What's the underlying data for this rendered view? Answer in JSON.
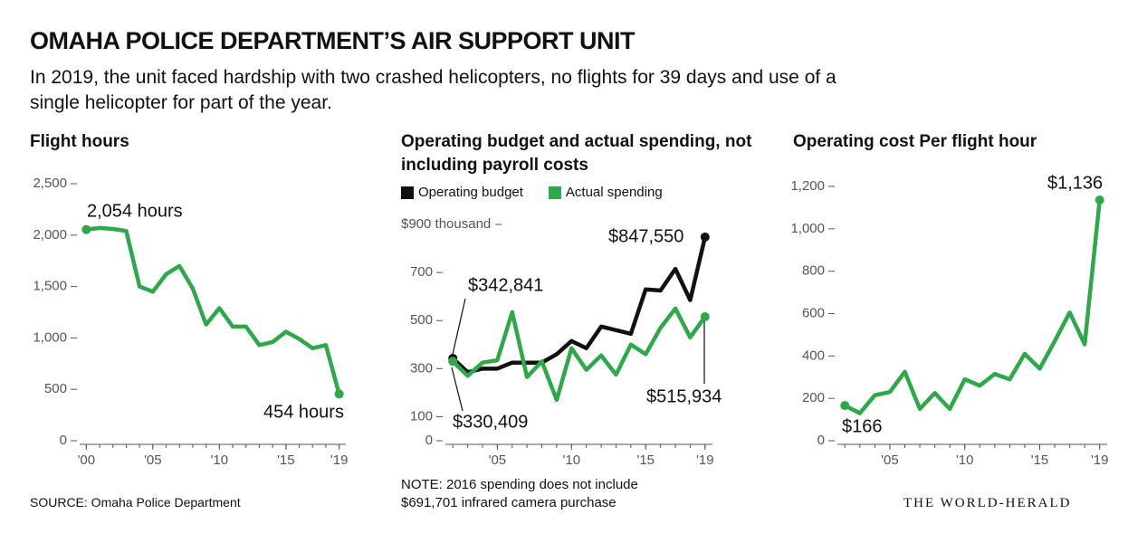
{
  "header": {
    "title": "OMAHA POLICE DEPARTMENT’S AIR SUPPORT UNIT",
    "subtitle": "In 2019, the unit faced hardship with two crashed helicopters, no flights for 39 days and use of a single helicopter for part of the year."
  },
  "source": "SOURCE: Omaha Police Department",
  "credit": "THE WORLD-HERALD",
  "chart_data": [
    {
      "type": "line",
      "title": "Flight hours",
      "x": [
        2000,
        2001,
        2002,
        2003,
        2004,
        2005,
        2006,
        2007,
        2008,
        2009,
        2010,
        2011,
        2012,
        2013,
        2014,
        2015,
        2016,
        2017,
        2018,
        2019
      ],
      "series": [
        {
          "color": "#2ea84a",
          "values": [
            2054,
            2070,
            2060,
            2040,
            1500,
            1450,
            1620,
            1700,
            1480,
            1130,
            1290,
            1110,
            1110,
            930,
            960,
            1060,
            990,
            900,
            930,
            454
          ]
        }
      ],
      "xlim": [
        1999.5,
        2019.5
      ],
      "xticks": [
        {
          "value": 2000,
          "label": "'00"
        },
        {
          "value": 2005,
          "label": "'05"
        },
        {
          "value": 2010,
          "label": "'10"
        },
        {
          "value": 2015,
          "label": "'15"
        },
        {
          "value": 2019,
          "label": "'19"
        }
      ],
      "ylim": [
        0,
        2500
      ],
      "yticks": [
        0,
        {
          "value": 500,
          "label": "500"
        },
        {
          "value": 1000,
          "label": "1,000"
        },
        {
          "value": 1500,
          "label": "1,500"
        },
        {
          "value": 2000,
          "label": "2,000"
        },
        {
          "value": 2500,
          "label": "2,500"
        }
      ],
      "annotations": [
        "2,054 hours",
        "454 hours"
      ]
    },
    {
      "type": "line",
      "title": "Operating budget and actual spending, not including payroll costs",
      "x": [
        2002,
        2003,
        2004,
        2005,
        2006,
        2007,
        2008,
        2009,
        2010,
        2011,
        2012,
        2013,
        2014,
        2015,
        2016,
        2017,
        2018,
        2019
      ],
      "series": [
        {
          "name": "Operating budget",
          "color": "#111111",
          "values": [
            342.841,
            285,
            300,
            300,
            325,
            325,
            325,
            360,
            415,
            385,
            475,
            460,
            445,
            630,
            625,
            715,
            585,
            847.55
          ]
        },
        {
          "name": "Actual spending",
          "color": "#2ea84a",
          "values": [
            330.409,
            270,
            325,
            335,
            535,
            265,
            330,
            170,
            385,
            295,
            355,
            275,
            400,
            360,
            470,
            550,
            430,
            515.934
          ]
        }
      ],
      "xlim": [
        2001.5,
        2019.5
      ],
      "xticks": [
        {
          "value": 2005,
          "label": "'05"
        },
        {
          "value": 2010,
          "label": "'10"
        },
        {
          "value": 2015,
          "label": "'15"
        },
        {
          "value": 2019,
          "label": "'19"
        }
      ],
      "ylim": [
        0,
        900
      ],
      "yticks": [
        0,
        100,
        300,
        500,
        700,
        {
          "value": 900,
          "label": "$900 thousand"
        }
      ],
      "annotations": [
        "$342,841",
        "$330,409",
        "$847,550",
        "$515,934"
      ],
      "note": "NOTE: 2016 spending does not include $691,701 infrared camera purchase"
    },
    {
      "type": "line",
      "title": "Operating cost Per flight hour",
      "x": [
        2002,
        2003,
        2004,
        2005,
        2006,
        2007,
        2008,
        2009,
        2010,
        2011,
        2012,
        2013,
        2014,
        2015,
        2016,
        2017,
        2018,
        2019
      ],
      "series": [
        {
          "color": "#2ea84a",
          "values": [
            166,
            130,
            215,
            230,
            325,
            150,
            225,
            150,
            290,
            260,
            315,
            290,
            410,
            340,
            470,
            605,
            455,
            1136
          ]
        }
      ],
      "xlim": [
        2001.5,
        2019.5
      ],
      "xticks": [
        {
          "value": 2005,
          "label": "'05"
        },
        {
          "value": 2010,
          "label": "'10"
        },
        {
          "value": 2015,
          "label": "'15"
        },
        {
          "value": 2019,
          "label": "'19"
        }
      ],
      "ylim": [
        0,
        1200
      ],
      "yticks": [
        0,
        200,
        400,
        600,
        800,
        {
          "value": 1000,
          "label": "1,000"
        },
        {
          "value": 1200,
          "label": "1,200"
        }
      ],
      "annotations": [
        "$1,136",
        "$166"
      ]
    }
  ]
}
